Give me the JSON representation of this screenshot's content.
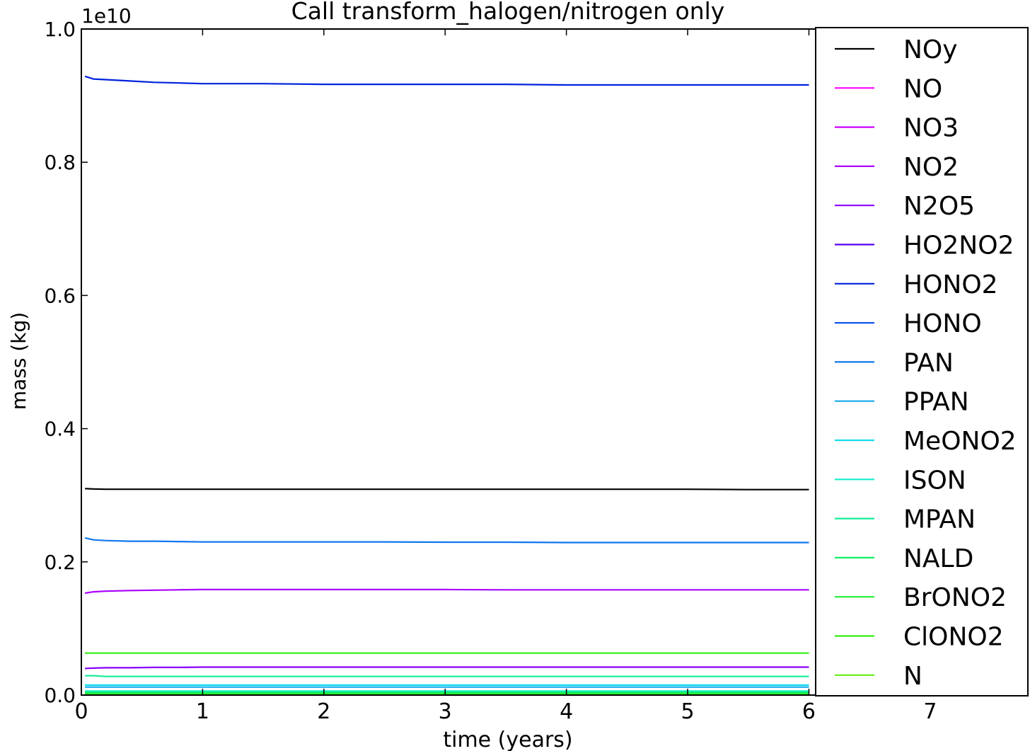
{
  "chart_data": {
    "type": "line",
    "title": "Call transform_halogen/nitrogen only",
    "xlabel": "time (years)",
    "ylabel": "mass (kg)",
    "y_offset_label": "1e10",
    "xlim": [
      0,
      7.8
    ],
    "ylim": [
      0,
      1.0
    ],
    "y_scale_factor": 10000000000.0,
    "x_ticks": [
      0,
      1,
      2,
      3,
      4,
      5,
      6,
      7
    ],
    "x_tick_labels": [
      "0",
      "1",
      "2",
      "3",
      "4",
      "5",
      "6",
      "7"
    ],
    "y_ticks": [
      0.0,
      0.2,
      0.4,
      0.6,
      0.8,
      1.0
    ],
    "y_tick_labels": [
      "0.0",
      "0.2",
      "0.4",
      "0.6",
      "0.8",
      "1.0"
    ],
    "legend_position": "right",
    "grid": false,
    "x": [
      0.03,
      0.1,
      0.2,
      0.4,
      0.6,
      0.8,
      1.0,
      1.5,
      2.0,
      2.5,
      3.0,
      3.5,
      4.0,
      4.5,
      5.0,
      5.5,
      6.0
    ],
    "series": [
      {
        "name": "NOy",
        "color": "#000000",
        "values": [
          0.31,
          0.3095,
          0.309,
          0.309,
          0.309,
          0.309,
          0.309,
          0.309,
          0.309,
          0.309,
          0.309,
          0.309,
          0.309,
          0.309,
          0.309,
          0.3085,
          0.3085
        ]
      },
      {
        "name": "NO",
        "color": "#ff00ff",
        "values": [
          0.001,
          0.001,
          0.001,
          0.001,
          0.001,
          0.001,
          0.001,
          0.001,
          0.001,
          0.001,
          0.001,
          0.001,
          0.001,
          0.001,
          0.001,
          0.001,
          0.001
        ]
      },
      {
        "name": "NO3",
        "color": "#cc00ff",
        "values": [
          0.0005,
          0.0005,
          0.0005,
          0.0005,
          0.0005,
          0.0005,
          0.0005,
          0.0005,
          0.0005,
          0.0005,
          0.0005,
          0.0005,
          0.0005,
          0.0005,
          0.0005,
          0.0005,
          0.0005
        ]
      },
      {
        "name": "NO2",
        "color": "#aa00ff",
        "values": [
          0.153,
          0.155,
          0.156,
          0.157,
          0.1575,
          0.158,
          0.1585,
          0.1585,
          0.1585,
          0.1585,
          0.1585,
          0.158,
          0.158,
          0.158,
          0.158,
          0.158,
          0.158
        ]
      },
      {
        "name": "N2O5",
        "color": "#8800ff",
        "values": [
          0.04,
          0.0405,
          0.041,
          0.041,
          0.0415,
          0.0415,
          0.042,
          0.042,
          0.042,
          0.042,
          0.042,
          0.042,
          0.042,
          0.042,
          0.042,
          0.042,
          0.042
        ]
      },
      {
        "name": "HO2NO2",
        "color": "#5500ee",
        "values": [
          0.0015,
          0.0015,
          0.0015,
          0.0015,
          0.0015,
          0.0015,
          0.0015,
          0.0015,
          0.0015,
          0.0015,
          0.0015,
          0.0015,
          0.0015,
          0.0015,
          0.0015,
          0.0015,
          0.0015
        ]
      },
      {
        "name": "HONO2",
        "color": "#0022dd",
        "values": [
          0.929,
          0.925,
          0.924,
          0.922,
          0.92,
          0.919,
          0.918,
          0.918,
          0.917,
          0.917,
          0.917,
          0.917,
          0.916,
          0.916,
          0.916,
          0.916,
          0.916
        ]
      },
      {
        "name": "HONO",
        "color": "#1155ee",
        "values": [
          0.0008,
          0.0008,
          0.0008,
          0.0008,
          0.0008,
          0.0008,
          0.0008,
          0.0008,
          0.0008,
          0.0008,
          0.0008,
          0.0008,
          0.0008,
          0.0008,
          0.0008,
          0.0008,
          0.0008
        ]
      },
      {
        "name": "PAN",
        "color": "#1177ee",
        "values": [
          0.236,
          0.233,
          0.232,
          0.231,
          0.231,
          0.2305,
          0.23,
          0.23,
          0.23,
          0.23,
          0.2295,
          0.2295,
          0.229,
          0.229,
          0.229,
          0.229,
          0.229
        ]
      },
      {
        "name": "PPAN",
        "color": "#11aaee",
        "values": [
          0.012,
          0.012,
          0.012,
          0.012,
          0.012,
          0.012,
          0.012,
          0.012,
          0.012,
          0.012,
          0.012,
          0.012,
          0.012,
          0.012,
          0.012,
          0.012,
          0.012
        ]
      },
      {
        "name": "MeONO2",
        "color": "#11ddee",
        "values": [
          0.015,
          0.015,
          0.015,
          0.015,
          0.015,
          0.015,
          0.015,
          0.015,
          0.015,
          0.015,
          0.015,
          0.015,
          0.015,
          0.015,
          0.015,
          0.015,
          0.015
        ]
      },
      {
        "name": "ISON",
        "color": "#11eecc",
        "values": [
          0.006,
          0.006,
          0.006,
          0.006,
          0.006,
          0.006,
          0.006,
          0.006,
          0.006,
          0.006,
          0.006,
          0.006,
          0.006,
          0.006,
          0.006,
          0.006,
          0.006
        ]
      },
      {
        "name": "MPAN",
        "color": "#11ee99",
        "values": [
          0.029,
          0.029,
          0.028,
          0.028,
          0.028,
          0.028,
          0.028,
          0.028,
          0.028,
          0.028,
          0.028,
          0.028,
          0.028,
          0.028,
          0.028,
          0.028,
          0.028
        ]
      },
      {
        "name": "NALD",
        "color": "#11ee66",
        "values": [
          0.004,
          0.004,
          0.004,
          0.004,
          0.004,
          0.004,
          0.004,
          0.004,
          0.004,
          0.004,
          0.004,
          0.004,
          0.004,
          0.004,
          0.004,
          0.004,
          0.004
        ]
      },
      {
        "name": "BrONO2",
        "color": "#22ee33",
        "values": [
          0.002,
          0.002,
          0.002,
          0.002,
          0.002,
          0.002,
          0.002,
          0.002,
          0.002,
          0.002,
          0.002,
          0.002,
          0.002,
          0.002,
          0.002,
          0.002,
          0.002
        ]
      },
      {
        "name": "ClONO2",
        "color": "#33ee11",
        "values": [
          0.063,
          0.063,
          0.063,
          0.063,
          0.063,
          0.063,
          0.063,
          0.063,
          0.063,
          0.063,
          0.063,
          0.063,
          0.063,
          0.063,
          0.063,
          0.063,
          0.063
        ]
      },
      {
        "name": "N",
        "color": "#66ee11",
        "values": [
          0.0002,
          0.0002,
          0.0002,
          0.0002,
          0.0002,
          0.0002,
          0.0002,
          0.0002,
          0.0002,
          0.0002,
          0.0002,
          0.0002,
          0.0002,
          0.0002,
          0.0002,
          0.0002,
          0.0002
        ]
      }
    ]
  }
}
